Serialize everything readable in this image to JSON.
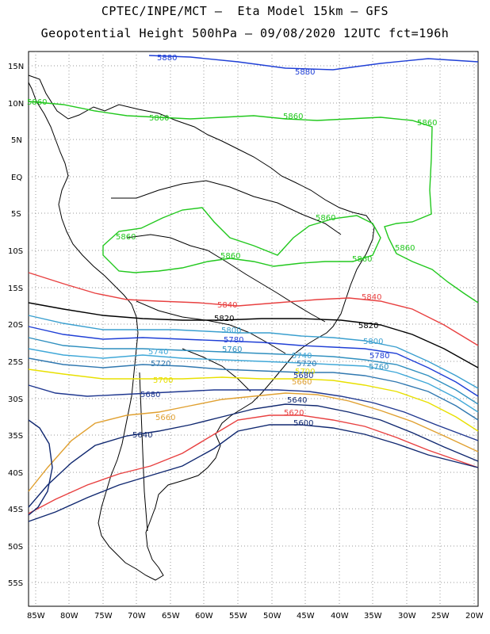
{
  "header": {
    "line1": "CPTEC/INPE/MCT –  Eta Model 15km – GFS",
    "line2": "Geopotential Height 500hPa – 09/08/2020 12UTC fct=196h"
  },
  "map": {
    "lat_ticks": [
      "15N",
      "10N",
      "5N",
      "EQ",
      "5S",
      "10S",
      "15S",
      "20S",
      "25S",
      "30S",
      "35S",
      "40S",
      "45S",
      "50S",
      "55S"
    ],
    "lon_ticks": [
      "85W",
      "80W",
      "75W",
      "70W",
      "65W",
      "60W",
      "55W",
      "50W",
      "45W",
      "40W",
      "35W",
      "30W",
      "25W",
      "20W"
    ],
    "contours": [
      {
        "value": "5880",
        "color": "#1f3fd6"
      },
      {
        "value": "5860",
        "color": "#22c81e"
      },
      {
        "value": "5840",
        "color": "#e84040"
      },
      {
        "value": "5820",
        "color": "#000000"
      },
      {
        "value": "5800",
        "color": "#3a9fcf"
      },
      {
        "value": "5780",
        "color": "#1f3fd6"
      },
      {
        "value": "5760",
        "color": "#2f8fbf"
      },
      {
        "value": "5740",
        "color": "#40a8d8"
      },
      {
        "value": "5720",
        "color": "#3078b0"
      },
      {
        "value": "5700",
        "color": "#e8e000"
      },
      {
        "value": "5680",
        "color": "#203890"
      },
      {
        "value": "5660",
        "color": "#e0a030"
      },
      {
        "value": "5640",
        "color": "#102870"
      },
      {
        "value": "5620",
        "color": "#e84040"
      },
      {
        "value": "5600",
        "color": "#102870"
      }
    ]
  }
}
